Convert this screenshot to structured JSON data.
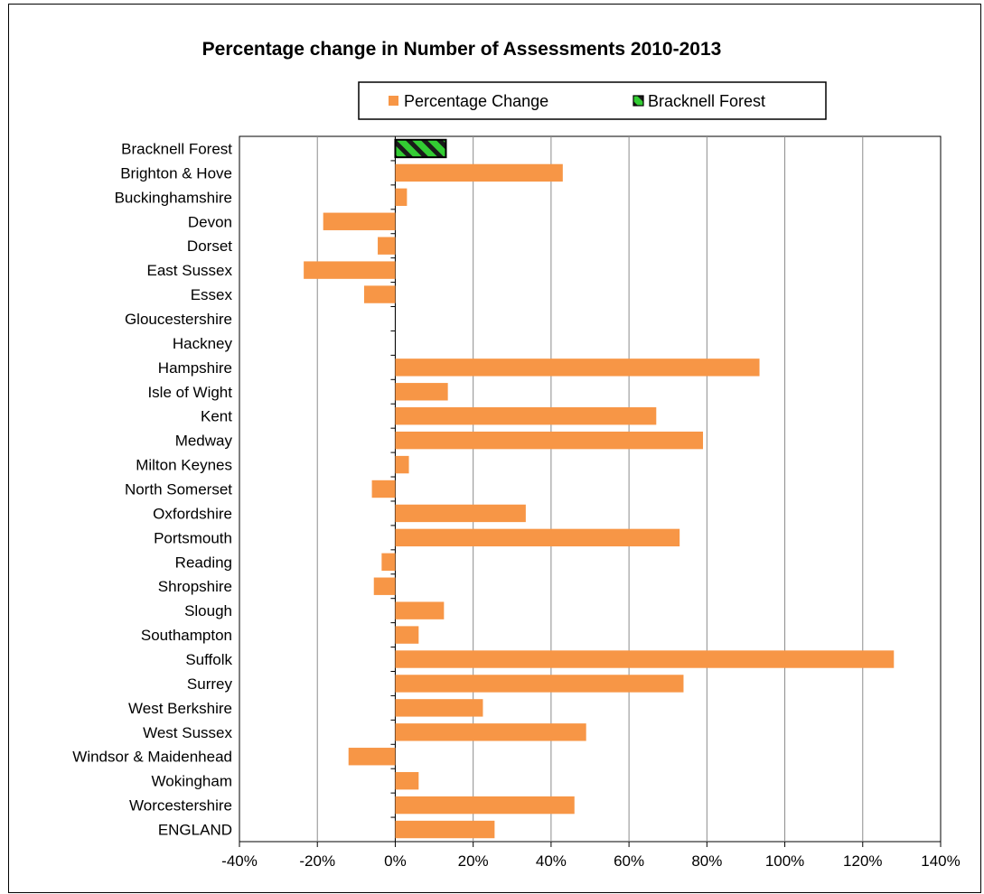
{
  "chart_data": {
    "type": "bar",
    "orientation": "horizontal",
    "title": "Percentage change in Number of Assessments 2010-2013",
    "xlabel": "",
    "ylabel": "",
    "xlim": [
      -40,
      140
    ],
    "x_ticks": [
      -40,
      -20,
      0,
      20,
      40,
      60,
      80,
      100,
      120,
      140
    ],
    "x_tick_format": "percent",
    "grid": "vertical",
    "legend_position": "top-right",
    "categories": [
      "Bracknell Forest",
      "Brighton & Hove",
      "Buckinghamshire",
      "Devon",
      "Dorset",
      "East Sussex",
      "Essex",
      "Gloucestershire",
      "Hackney",
      "Hampshire",
      "Isle of Wight",
      "Kent",
      "Medway",
      "Milton Keynes",
      "North Somerset",
      "Oxfordshire",
      "Portsmouth",
      "Reading",
      "Shropshire",
      "Slough",
      "Southampton",
      "Suffolk",
      "Surrey",
      "West Berkshire",
      "West Sussex",
      "Windsor & Maidenhead",
      "Wokingham",
      "Worcestershire",
      "ENGLAND"
    ],
    "series": [
      {
        "name": "Percentage Change",
        "color": "#F79646",
        "values": [
          null,
          43,
          3,
          -18.5,
          -4.5,
          -23.5,
          -8,
          0,
          0,
          93.5,
          13.5,
          67,
          79,
          3.5,
          -6,
          33.5,
          73,
          -3.5,
          -5.5,
          12.5,
          6,
          128,
          74,
          22.5,
          49,
          -12,
          6,
          46,
          25.5
        ]
      },
      {
        "name": "Bracknell Forest",
        "color": "#33CC33",
        "pattern": "diagonal-hatch",
        "values": [
          13,
          null,
          null,
          null,
          null,
          null,
          null,
          null,
          null,
          null,
          null,
          null,
          null,
          null,
          null,
          null,
          null,
          null,
          null,
          null,
          null,
          null,
          null,
          null,
          null,
          null,
          null,
          null,
          null
        ]
      }
    ]
  }
}
